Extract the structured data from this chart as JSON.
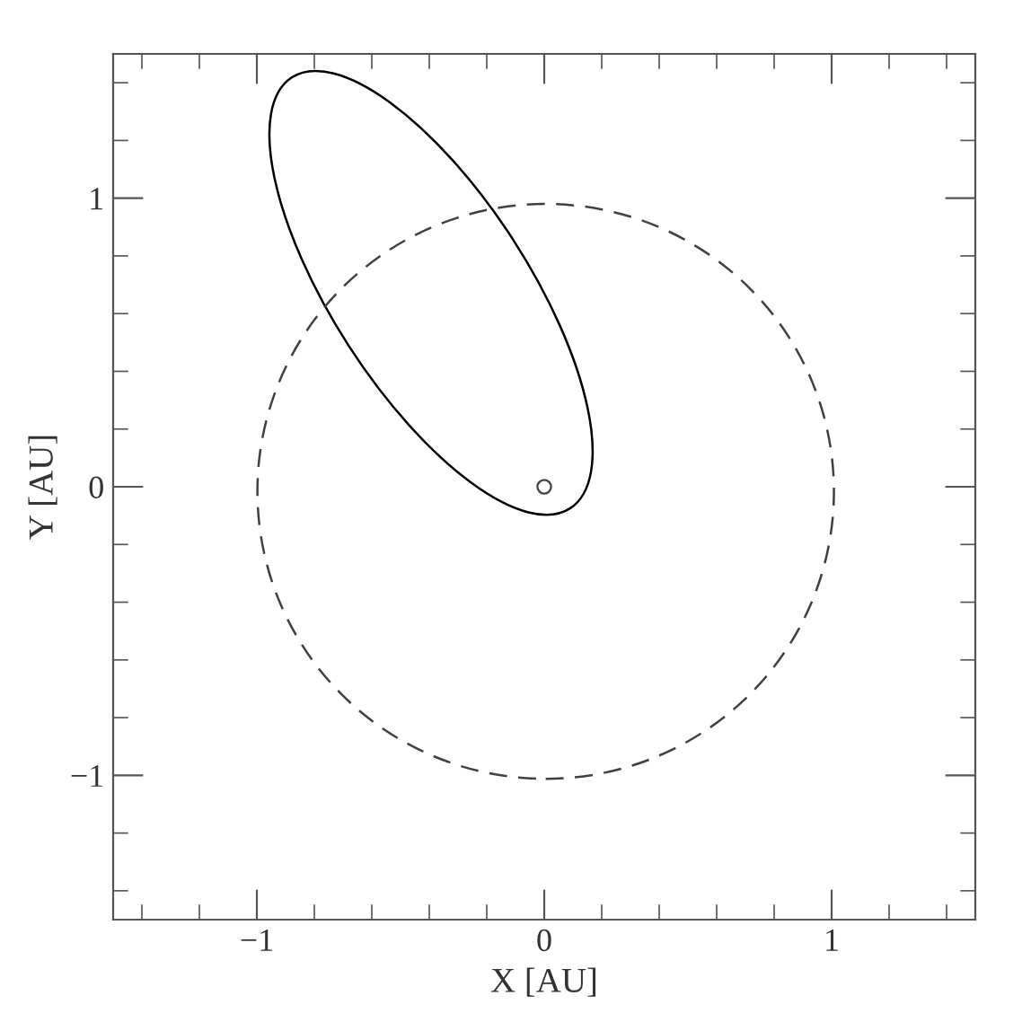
{
  "chart_data": {
    "type": "scatter",
    "xlabel": "X [AU]",
    "ylabel": "Y [AU]",
    "xlim": [
      -1.5,
      1.5
    ],
    "ylim": [
      -1.5,
      1.5
    ],
    "xticks": [
      {
        "value": -1.4,
        "label": null
      },
      {
        "value": -1.2,
        "label": null
      },
      {
        "value": -1,
        "label": "−1"
      },
      {
        "value": -0.8,
        "label": null
      },
      {
        "value": -0.6,
        "label": null
      },
      {
        "value": -0.4,
        "label": null
      },
      {
        "value": -0.2,
        "label": null
      },
      0,
      {
        "value": 0.2,
        "label": null
      },
      {
        "value": 0.4,
        "label": null
      },
      {
        "value": 0.6,
        "label": null
      },
      {
        "value": 0.8,
        "label": null
      },
      1,
      {
        "value": 1.2,
        "label": null
      },
      {
        "value": 1.4,
        "label": null
      }
    ],
    "yticks": [
      {
        "value": -1.4,
        "label": null
      },
      {
        "value": -1.2,
        "label": null
      },
      {
        "value": -1,
        "label": "−1"
      },
      {
        "value": -0.8,
        "label": null
      },
      {
        "value": -0.6,
        "label": null
      },
      {
        "value": -0.4,
        "label": null
      },
      {
        "value": -0.2,
        "label": null
      },
      0,
      {
        "value": 0.2,
        "label": null
      },
      {
        "value": 0.4,
        "label": null
      },
      {
        "value": 0.6,
        "label": null
      },
      {
        "value": 0.8,
        "label": null
      },
      1,
      {
        "value": 1.2,
        "label": null
      },
      {
        "value": 1.4,
        "label": null
      }
    ],
    "grid": false,
    "legend": false,
    "series": [
      {
        "color": "#404040",
        "marker": "circle",
        "x": [
          0
        ],
        "values": [
          0
        ]
      }
    ]
  }
}
